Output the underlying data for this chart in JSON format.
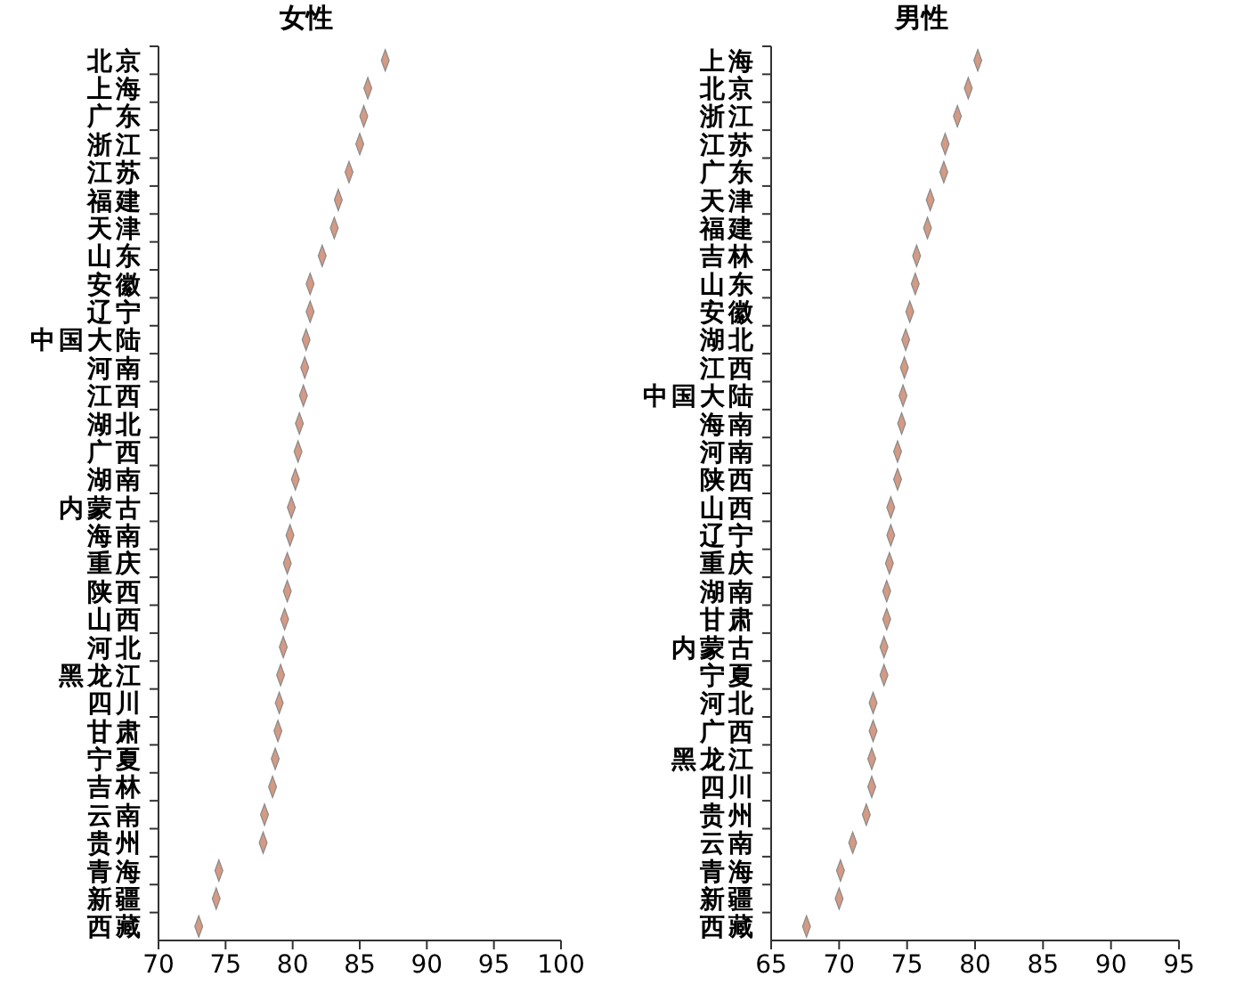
{
  "chart_data": [
    {
      "type": "scatter",
      "title": "女性",
      "orientation": "horizontal",
      "marker": "diamond",
      "color": "#d49a84",
      "categories": [
        "北京",
        "上海",
        "广东",
        "浙江",
        "江苏",
        "福建",
        "天津",
        "山东",
        "安徽",
        "辽宁",
        "中国大陆",
        "河南",
        "江西",
        "湖北",
        "广西",
        "湖南",
        "内蒙古",
        "海南",
        "重庆",
        "陕西",
        "山西",
        "河北",
        "黑龙江",
        "四川",
        "甘肃",
        "宁夏",
        "吉林",
        "云南",
        "贵州",
        "青海",
        "新疆",
        "西藏"
      ],
      "values": [
        86.9,
        85.6,
        85.3,
        85.0,
        84.2,
        83.4,
        83.1,
        82.2,
        81.3,
        81.3,
        81.0,
        80.9,
        80.8,
        80.5,
        80.4,
        80.2,
        79.9,
        79.8,
        79.6,
        79.6,
        79.4,
        79.3,
        79.1,
        79.0,
        78.9,
        78.7,
        78.5,
        77.9,
        77.8,
        74.5,
        74.3,
        73.0
      ],
      "xlim": [
        70,
        100
      ],
      "xticks": [
        70,
        75,
        80,
        85,
        90,
        95,
        100
      ]
    },
    {
      "type": "scatter",
      "title": "男性",
      "orientation": "horizontal",
      "marker": "diamond",
      "color": "#d49a84",
      "categories": [
        "上海",
        "北京",
        "浙江",
        "江苏",
        "广东",
        "天津",
        "福建",
        "吉林",
        "山东",
        "安徽",
        "湖北",
        "江西",
        "中国大陆",
        "海南",
        "河南",
        "陕西",
        "山西",
        "辽宁",
        "重庆",
        "湖南",
        "甘肃",
        "内蒙古",
        "宁夏",
        "河北",
        "广西",
        "黑龙江",
        "四川",
        "贵州",
        "云南",
        "青海",
        "新疆",
        "西藏"
      ],
      "values": [
        80.2,
        79.5,
        78.7,
        77.8,
        77.7,
        76.7,
        76.5,
        75.7,
        75.6,
        75.2,
        74.9,
        74.8,
        74.7,
        74.6,
        74.3,
        74.3,
        73.8,
        73.8,
        73.7,
        73.5,
        73.5,
        73.3,
        73.3,
        72.5,
        72.5,
        72.4,
        72.4,
        72.0,
        71.0,
        70.1,
        70.0,
        67.6
      ],
      "xlim": [
        65,
        95
      ],
      "xticks": [
        65,
        70,
        75,
        80,
        85,
        90,
        95
      ]
    }
  ]
}
